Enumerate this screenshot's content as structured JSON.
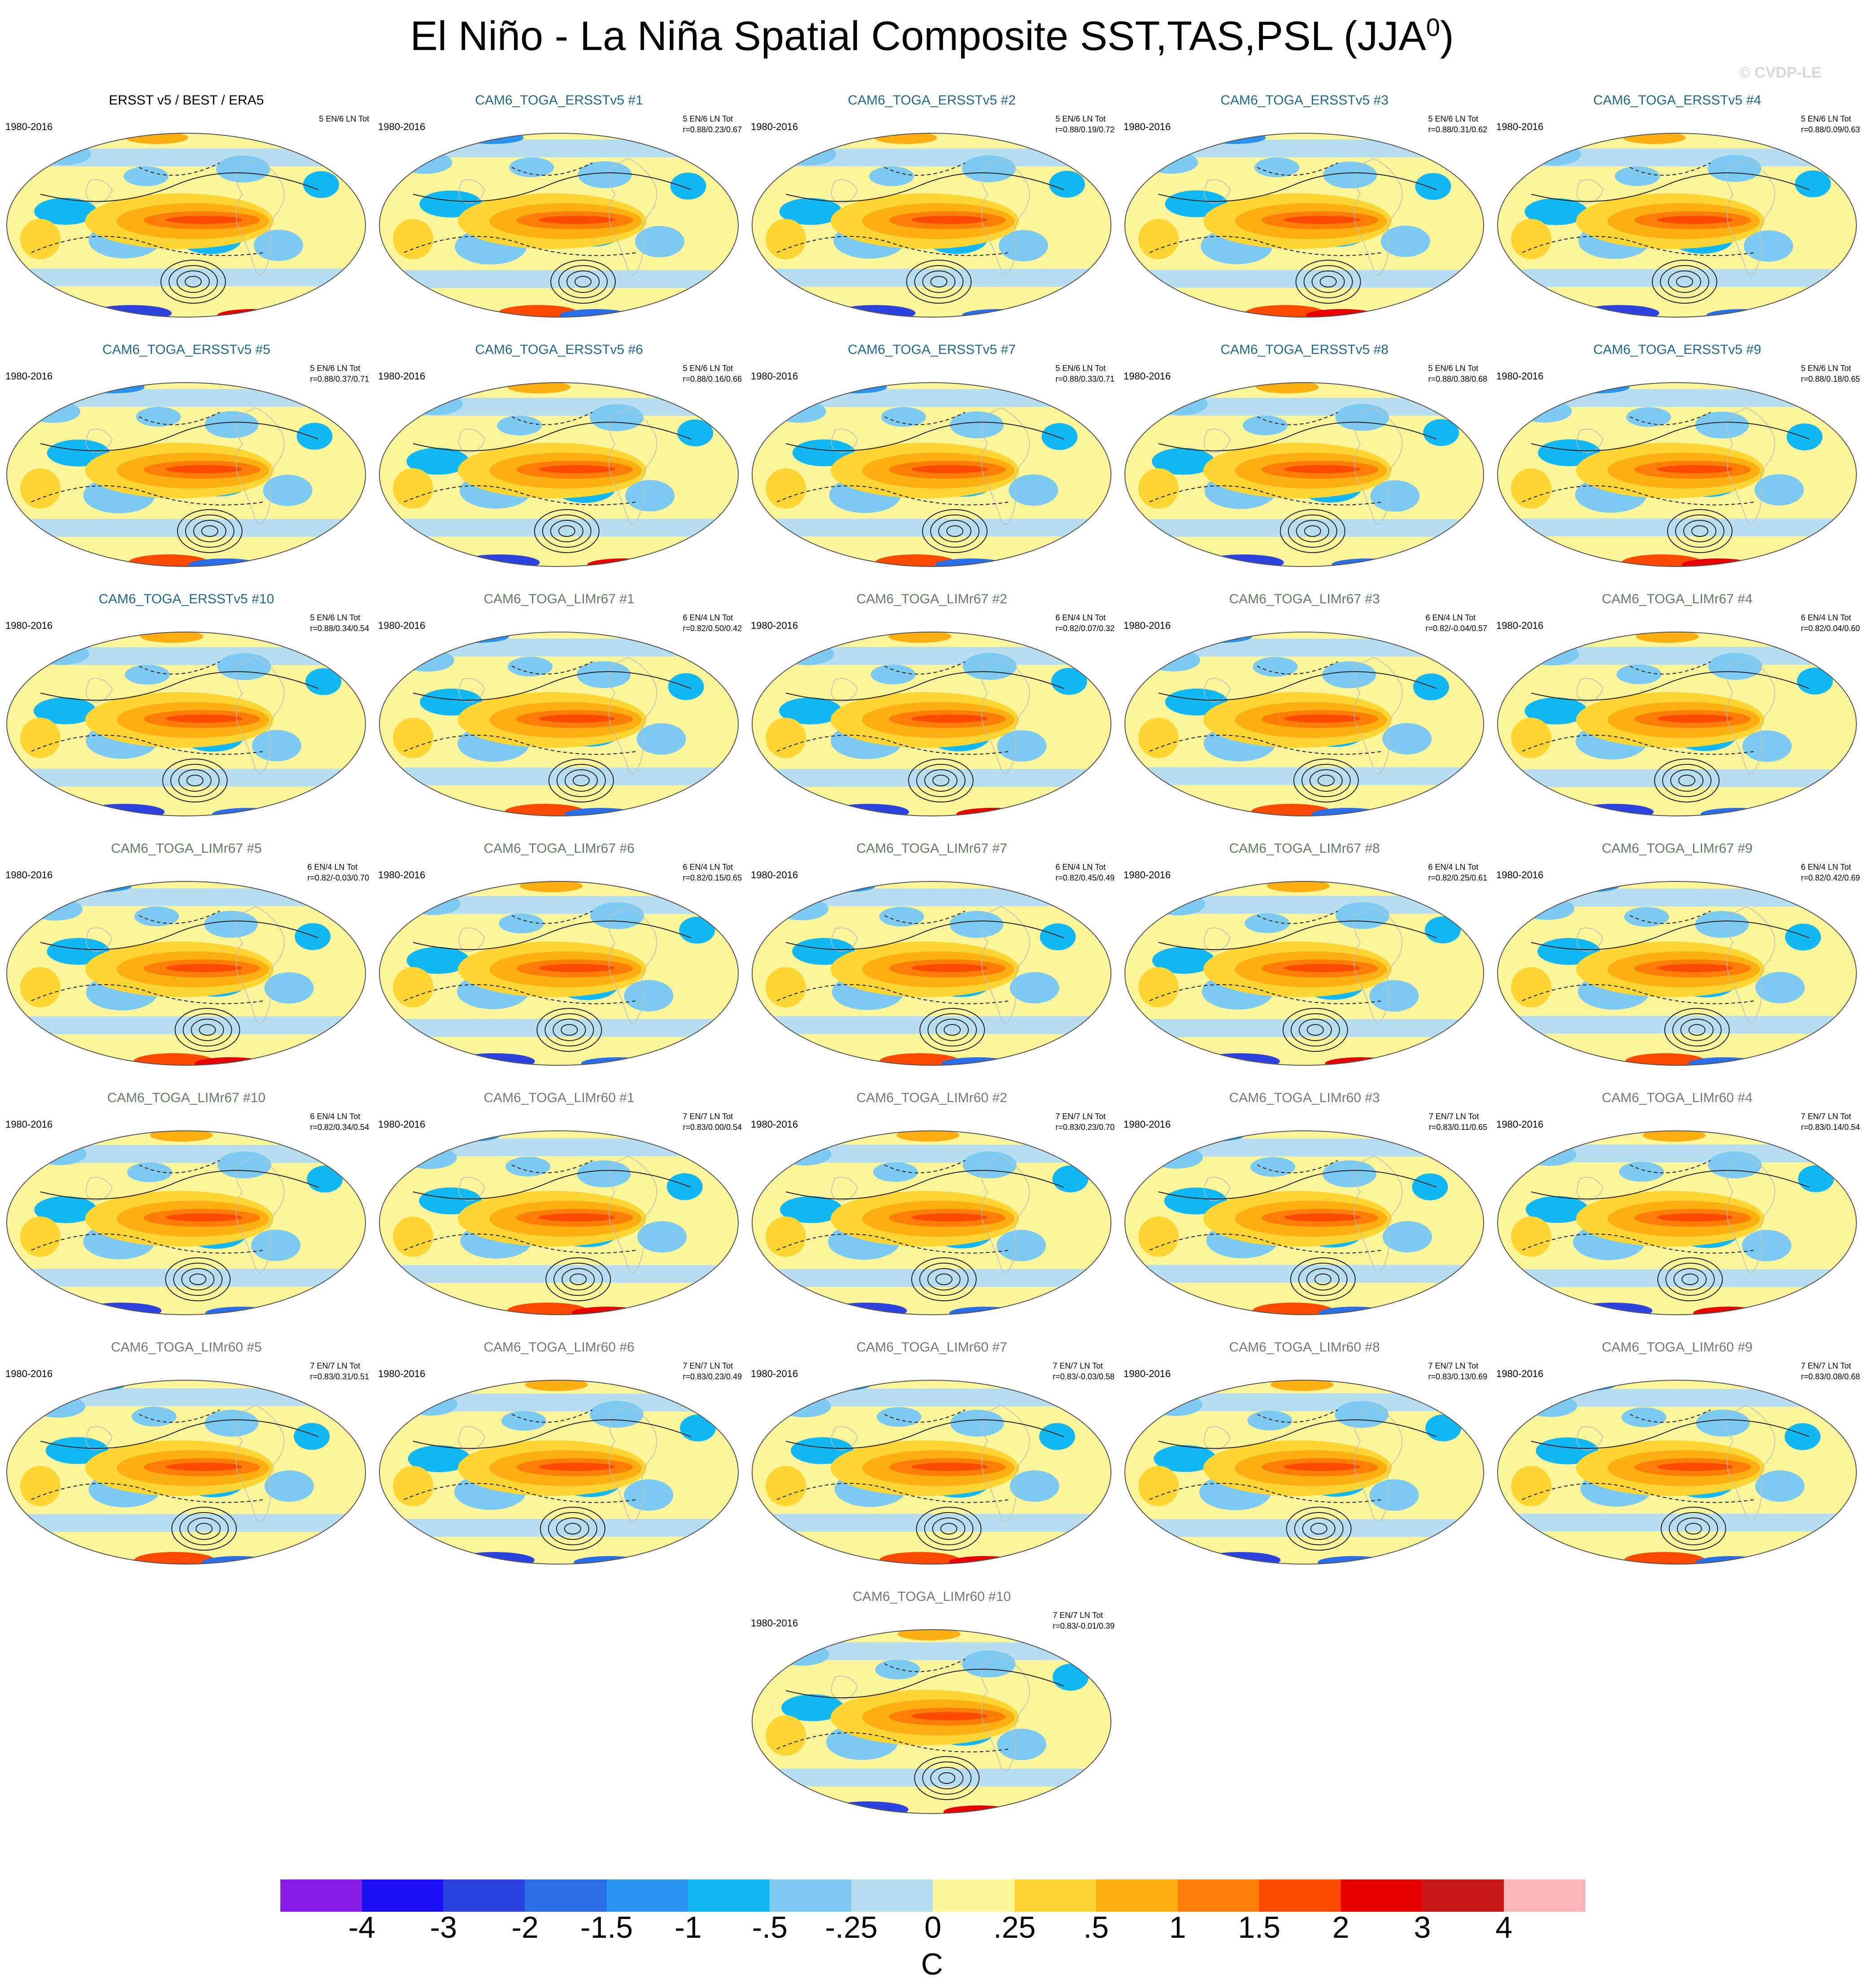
{
  "title": "El Niño - La Niña Spatial Composite SST,TAS,PSL (JJA",
  "title_superscript": "0",
  "title_close": ")",
  "watermark": "© CVDP-LE",
  "period_label": "1980-2016",
  "colors": {
    "obs_title": "#000000",
    "ersst_title": "#1f6a8c",
    "limr67_title": "#5f7f5f",
    "limr60_title": "#777777"
  },
  "panels": [
    {
      "title": "ERSST v5 / BEST / ERA5",
      "group": "obs",
      "counts": "5 EN/6 LN Tot",
      "stats": ""
    },
    {
      "title": "CAM6_TOGA_ERSSTv5 #1",
      "group": "ersst",
      "counts": "5 EN/6 LN Tot",
      "stats": "r=0.88/0.23/0.67"
    },
    {
      "title": "CAM6_TOGA_ERSSTv5 #2",
      "group": "ersst",
      "counts": "5 EN/6 LN Tot",
      "stats": "r=0.88/0.19/0.72"
    },
    {
      "title": "CAM6_TOGA_ERSSTv5 #3",
      "group": "ersst",
      "counts": "5 EN/6 LN Tot",
      "stats": "r=0.88/0.31/0.62"
    },
    {
      "title": "CAM6_TOGA_ERSSTv5 #4",
      "group": "ersst",
      "counts": "5 EN/6 LN Tot",
      "stats": "r=0.88/0.09/0.63"
    },
    {
      "title": "CAM6_TOGA_ERSSTv5 #5",
      "group": "ersst",
      "counts": "5 EN/6 LN Tot",
      "stats": "r=0.88/0.37/0.71"
    },
    {
      "title": "CAM6_TOGA_ERSSTv5 #6",
      "group": "ersst",
      "counts": "5 EN/6 LN Tot",
      "stats": "r=0.88/0.16/0.66"
    },
    {
      "title": "CAM6_TOGA_ERSSTv5 #7",
      "group": "ersst",
      "counts": "5 EN/6 LN Tot",
      "stats": "r=0.88/0.33/0.71"
    },
    {
      "title": "CAM6_TOGA_ERSSTv5 #8",
      "group": "ersst",
      "counts": "5 EN/6 LN Tot",
      "stats": "r=0.88/0.38/0.68"
    },
    {
      "title": "CAM6_TOGA_ERSSTv5 #9",
      "group": "ersst",
      "counts": "5 EN/6 LN Tot",
      "stats": "r=0.88/0.18/0.65"
    },
    {
      "title": "CAM6_TOGA_ERSSTv5 #10",
      "group": "ersst",
      "counts": "5 EN/6 LN Tot",
      "stats": "r=0.88/0.34/0.54"
    },
    {
      "title": "CAM6_TOGA_LIMr67 #1",
      "group": "limr67",
      "counts": "6 EN/4 LN Tot",
      "stats": "r=0.82/0.50/0.42"
    },
    {
      "title": "CAM6_TOGA_LIMr67 #2",
      "group": "limr67",
      "counts": "6 EN/4 LN Tot",
      "stats": "r=0.82/0.07/0.32"
    },
    {
      "title": "CAM6_TOGA_LIMr67 #3",
      "group": "limr67",
      "counts": "6 EN/4 LN Tot",
      "stats": "r=0.82/-0.04/0.57"
    },
    {
      "title": "CAM6_TOGA_LIMr67 #4",
      "group": "limr67",
      "counts": "6 EN/4 LN Tot",
      "stats": "r=0.82/0.04/0.60"
    },
    {
      "title": "CAM6_TOGA_LIMr67 #5",
      "group": "limr67",
      "counts": "6 EN/4 LN Tot",
      "stats": "r=0.82/-0.03/0.70"
    },
    {
      "title": "CAM6_TOGA_LIMr67 #6",
      "group": "limr67",
      "counts": "6 EN/4 LN Tot",
      "stats": "r=0.82/0.15/0.65"
    },
    {
      "title": "CAM6_TOGA_LIMr67 #7",
      "group": "limr67",
      "counts": "6 EN/4 LN Tot",
      "stats": "r=0.82/0.45/0.49"
    },
    {
      "title": "CAM6_TOGA_LIMr67 #8",
      "group": "limr67",
      "counts": "6 EN/4 LN Tot",
      "stats": "r=0.82/0.25/0.61"
    },
    {
      "title": "CAM6_TOGA_LIMr67 #9",
      "group": "limr67",
      "counts": "6 EN/4 LN Tot",
      "stats": "r=0.82/0.42/0.69"
    },
    {
      "title": "CAM6_TOGA_LIMr67 #10",
      "group": "limr67",
      "counts": "6 EN/4 LN Tot",
      "stats": "r=0.82/0.34/0.54"
    },
    {
      "title": "CAM6_TOGA_LIMr60 #1",
      "group": "limr60",
      "counts": "7 EN/7 LN Tot",
      "stats": "r=0.83/0.00/0.54"
    },
    {
      "title": "CAM6_TOGA_LIMr60 #2",
      "group": "limr60",
      "counts": "7 EN/7 LN Tot",
      "stats": "r=0.83/0.23/0.70"
    },
    {
      "title": "CAM6_TOGA_LIMr60 #3",
      "group": "limr60",
      "counts": "7 EN/7 LN Tot",
      "stats": "r=0.83/0.11/0.65"
    },
    {
      "title": "CAM6_TOGA_LIMr60 #4",
      "group": "limr60",
      "counts": "7 EN/7 LN Tot",
      "stats": "r=0.83/0.14/0.54"
    },
    {
      "title": "CAM6_TOGA_LIMr60 #5",
      "group": "limr60",
      "counts": "7 EN/7 LN Tot",
      "stats": "r=0.83/0.31/0.51"
    },
    {
      "title": "CAM6_TOGA_LIMr60 #6",
      "group": "limr60",
      "counts": "7 EN/7 LN Tot",
      "stats": "r=0.83/0.23/0.49"
    },
    {
      "title": "CAM6_TOGA_LIMr60 #7",
      "group": "limr60",
      "counts": "7 EN/7 LN Tot",
      "stats": "r=0.83/-0.03/0.58"
    },
    {
      "title": "CAM6_TOGA_LIMr60 #8",
      "group": "limr60",
      "counts": "7 EN/7 LN Tot",
      "stats": "r=0.83/0.13/0.69"
    },
    {
      "title": "CAM6_TOGA_LIMr60 #9",
      "group": "limr60",
      "counts": "7 EN/7 LN Tot",
      "stats": "r=0.83/0.08/0.68"
    },
    {
      "title": "CAM6_TOGA_LIMr60 #10",
      "group": "limr60",
      "counts": "7 EN/7 LN Tot",
      "stats": "r=0.83/-0.01/0.39"
    }
  ],
  "colorbar": {
    "colors": [
      "#8a1ee8",
      "#1a10f5",
      "#2d43e0",
      "#2a6ee8",
      "#2a93f0",
      "#12b8f4",
      "#7ccaf2",
      "#b6def0",
      "#fdf59a",
      "#fed533",
      "#fdaf12",
      "#fd7d06",
      "#fd4a00",
      "#e80000",
      "#c81818",
      "#fdb6b8"
    ],
    "labels": [
      "-4",
      "-3",
      "-2",
      "-1.5",
      "-1",
      "-.5",
      "-.25",
      "0",
      ".25",
      ".5",
      "1",
      "1.5",
      "2",
      "3",
      "4"
    ],
    "units": "C"
  }
}
